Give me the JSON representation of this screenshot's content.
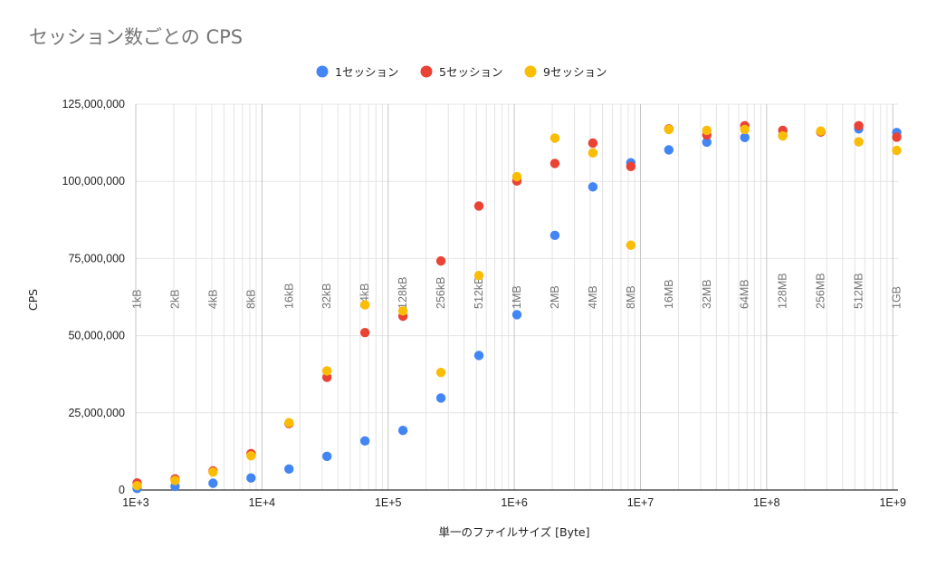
{
  "chart_data": {
    "type": "scatter",
    "title": "セッション数ごとの CPS",
    "xlabel": "単一のファイルサイズ [Byte]",
    "ylabel": "CPS",
    "xscale": "log",
    "xlim": [
      1000,
      1100000000
    ],
    "ylim": [
      0,
      125000000
    ],
    "x_major_ticks": [
      {
        "value": 1000,
        "label": "1E+3"
      },
      {
        "value": 10000,
        "label": "1E+4"
      },
      {
        "value": 100000,
        "label": "1E+5"
      },
      {
        "value": 1000000,
        "label": "1E+6"
      },
      {
        "value": 10000000,
        "label": "1E+7"
      },
      {
        "value": 100000000,
        "label": "1E+8"
      },
      {
        "value": 1000000000,
        "label": "1E+9"
      }
    ],
    "y_ticks": [
      {
        "value": 0,
        "label": "0"
      },
      {
        "value": 25000000,
        "label": "25,000,000"
      },
      {
        "value": 50000000,
        "label": "50,000,000"
      },
      {
        "value": 75000000,
        "label": "75,000,000"
      },
      {
        "value": 100000000,
        "label": "100,000,000"
      },
      {
        "value": 125000000,
        "label": "125,000,000"
      }
    ],
    "size_annotations": [
      {
        "value": 1024,
        "label": "1kB"
      },
      {
        "value": 2048,
        "label": "2kB"
      },
      {
        "value": 4096,
        "label": "4kB"
      },
      {
        "value": 8192,
        "label": "8kB"
      },
      {
        "value": 16384,
        "label": "16kB"
      },
      {
        "value": 32768,
        "label": "32kB"
      },
      {
        "value": 65536,
        "label": "64kB"
      },
      {
        "value": 131072,
        "label": "128kB"
      },
      {
        "value": 262144,
        "label": "256kB"
      },
      {
        "value": 524288,
        "label": "512kB"
      },
      {
        "value": 1048576,
        "label": "1MB"
      },
      {
        "value": 2097152,
        "label": "2MB"
      },
      {
        "value": 4194304,
        "label": "4MB"
      },
      {
        "value": 8388608,
        "label": "8MB"
      },
      {
        "value": 16777216,
        "label": "16MB"
      },
      {
        "value": 33554432,
        "label": "32MB"
      },
      {
        "value": 67108864,
        "label": "64MB"
      },
      {
        "value": 134217728,
        "label": "128MB"
      },
      {
        "value": 268435456,
        "label": "256MB"
      },
      {
        "value": 536870912,
        "label": "512MB"
      },
      {
        "value": 1073741824,
        "label": "1GB"
      }
    ],
    "legend_position": "top-center",
    "x": [
      1024,
      2048,
      4096,
      8192,
      16384,
      32768,
      65536,
      131072,
      262144,
      524288,
      1048576,
      2097152,
      4194304,
      8388608,
      16777216,
      33554432,
      67108864,
      134217728,
      268435456,
      536870912,
      1073741824
    ],
    "series": [
      {
        "name": "1セッション",
        "color": "#4285f4",
        "values": [
          500000,
          1200000,
          2200000,
          3900000,
          6800000,
          10900000,
          15900000,
          19300000,
          29800000,
          43600000,
          56800000,
          82500000,
          98200000,
          106000000,
          110200000,
          112700000,
          114200000,
          114800000,
          116000000,
          117000000,
          115800000
        ]
      },
      {
        "name": "5セッション",
        "color": "#ea4335",
        "values": [
          2300000,
          3600000,
          6200000,
          11800000,
          21500000,
          36500000,
          51000000,
          56300000,
          74200000,
          92000000,
          100100000,
          105800000,
          112400000,
          104800000,
          117000000,
          115000000,
          118000000,
          116500000,
          116000000,
          118000000,
          114300000
        ]
      },
      {
        "name": "9セッション",
        "color": "#fbbc04",
        "values": [
          1400000,
          3100000,
          5800000,
          11100000,
          21800000,
          38600000,
          60000000,
          58000000,
          38100000,
          69500000,
          101500000,
          114000000,
          109200000,
          79300000,
          116800000,
          116500000,
          116800000,
          114700000,
          116300000,
          112800000,
          110000000
        ]
      }
    ]
  }
}
